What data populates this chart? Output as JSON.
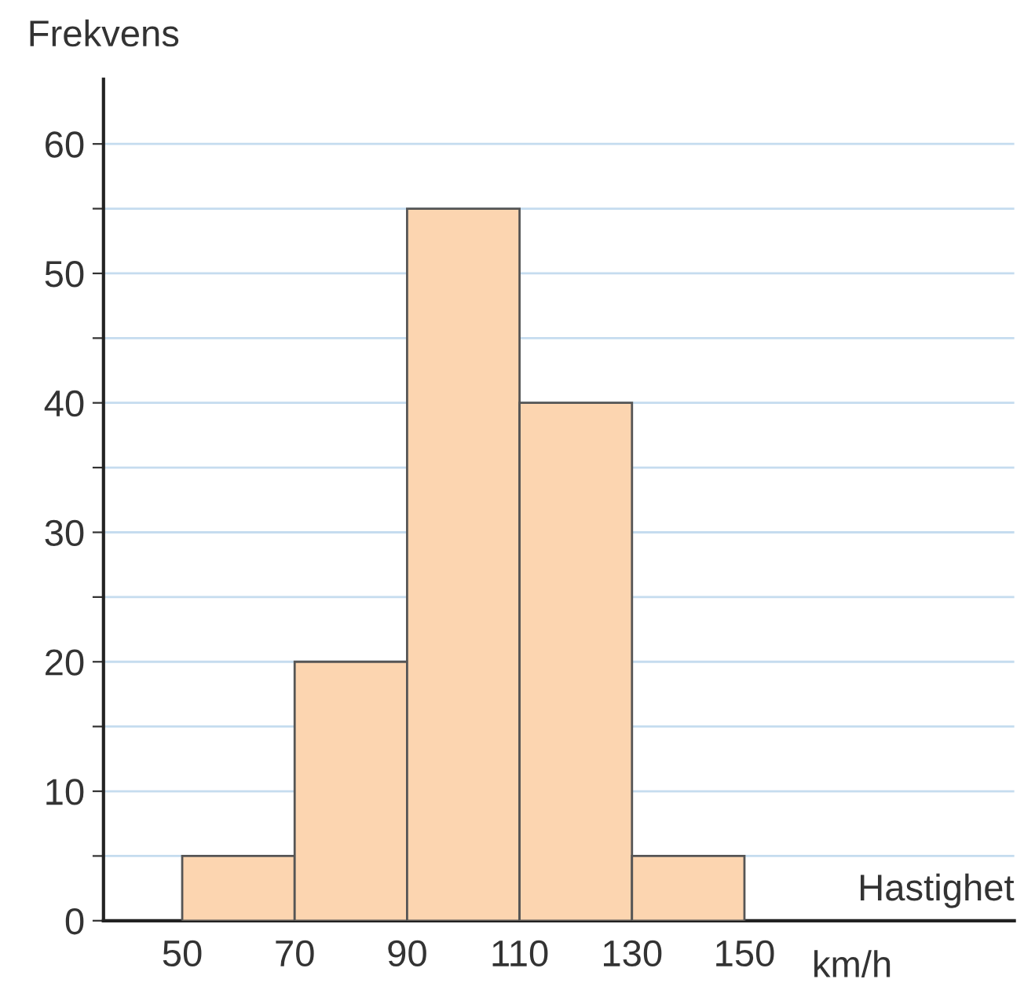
{
  "chart_data": {
    "type": "histogram",
    "xlabel": "Hastighet",
    "ylabel": "Frekvens",
    "annotations": [
      "km/h"
    ],
    "bins": [
      50,
      70,
      90,
      110,
      130,
      150
    ],
    "values": [
      5,
      20,
      55,
      40,
      5
    ],
    "color": "#fcd5b0",
    "xlim": [
      36,
      198
    ],
    "xticks": [
      50,
      70,
      90,
      110,
      130,
      150
    ],
    "ylim": [
      0,
      65
    ],
    "yticks": [
      0,
      {
        "value": 5,
        "label": null
      },
      10,
      {
        "value": 15,
        "label": null
      },
      20,
      {
        "value": 25,
        "label": null
      },
      30,
      {
        "value": 35,
        "label": null
      },
      40,
      {
        "value": 45,
        "label": null
      },
      50,
      {
        "value": 55,
        "label": null
      },
      60
    ],
    "grid": "y"
  }
}
